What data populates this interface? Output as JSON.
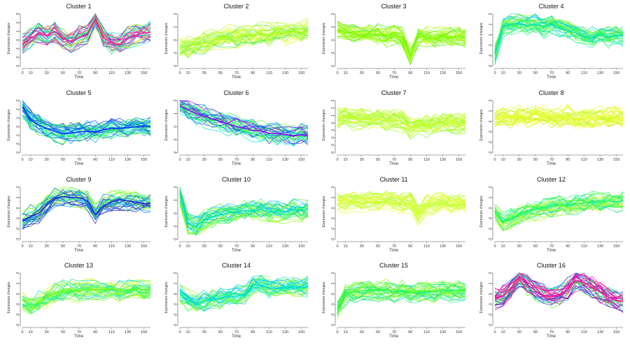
{
  "figure": {
    "xlabel": "Time",
    "ylabel": "Expression changes",
    "x_ticks": [
      0,
      10,
      30,
      50,
      70,
      90,
      110,
      130,
      150
    ]
  },
  "chart_data": [
    {
      "type": "line",
      "title": "Cluster 1",
      "xlabel": "Time",
      "ylabel": "Expression changes",
      "ylim": [
        -3,
        3
      ],
      "y_ticks": [
        -3,
        -2,
        -1,
        0,
        1,
        2,
        3
      ],
      "x": [
        0,
        10,
        20,
        30,
        40,
        50,
        60,
        70,
        80,
        90,
        100,
        110,
        120,
        130,
        140,
        150,
        158
      ],
      "series": [
        {
          "values": [
            -0.5,
            0.2,
            0.8,
            0.5,
            1.0,
            0.2,
            -0.2,
            0.3,
            0.6,
            2.4,
            0.3,
            -0.3,
            -0.5,
            0.3,
            0.6,
            0.8,
            0.9
          ]
        }
      ],
      "colors": [
        "#ff1493",
        "#ff00aa",
        "#2a1fd6",
        "#00b0ff",
        "#00e0d0",
        "#40ff40",
        "#b0ff20"
      ]
    },
    {
      "type": "line",
      "title": "Cluster 2",
      "xlabel": "Time",
      "ylabel": "Expression changes",
      "ylim": [
        -2,
        2
      ],
      "y_ticks": [
        -2,
        -1,
        0,
        1,
        2
      ],
      "x": [
        0,
        10,
        20,
        30,
        40,
        50,
        60,
        70,
        80,
        90,
        100,
        110,
        120,
        130,
        140,
        150,
        158
      ],
      "series": [
        {
          "values": [
            -0.6,
            -0.5,
            -0.3,
            -0.2,
            0.0,
            0.2,
            0.3,
            0.2,
            0.4,
            0.3,
            0.5,
            0.4,
            0.6,
            0.5,
            0.7,
            0.6,
            0.8
          ]
        }
      ],
      "colors": [
        "#a8ff20",
        "#d8ff30",
        "#80ff30",
        "#f0ff40",
        "#40f040"
      ]
    },
    {
      "type": "line",
      "title": "Cluster 3",
      "xlabel": "Time",
      "ylabel": "Expression changes",
      "ylim": [
        -2,
        2
      ],
      "y_ticks": [
        -2,
        -1,
        0,
        1,
        2
      ],
      "x": [
        0,
        10,
        20,
        30,
        40,
        50,
        60,
        70,
        80,
        90,
        100,
        110,
        120,
        130,
        140,
        150,
        158
      ],
      "series": [
        {
          "values": [
            0.8,
            0.6,
            0.5,
            0.4,
            0.5,
            0.4,
            0.3,
            0.4,
            0.2,
            -1.2,
            0.3,
            0.2,
            0.1,
            0.3,
            0.2,
            0.3,
            0.2
          ]
        }
      ],
      "colors": [
        "#7cff00",
        "#a8ff20",
        "#50f000",
        "#c8ff30"
      ]
    },
    {
      "type": "line",
      "title": "Cluster 4",
      "xlabel": "Time",
      "ylabel": "Expression changes",
      "ylim": [
        -3,
        2
      ],
      "y_ticks": [
        -3,
        -2,
        -1,
        0,
        1,
        2
      ],
      "x": [
        0,
        10,
        20,
        30,
        40,
        50,
        60,
        70,
        80,
        90,
        100,
        110,
        120,
        130,
        140,
        150,
        158
      ],
      "series": [
        {
          "values": [
            -1.8,
            0.8,
            1.0,
            1.1,
            0.9,
            1.0,
            0.8,
            1.0,
            0.7,
            0.4,
            0.2,
            -0.2,
            -0.3,
            0.0,
            -0.2,
            0.0,
            -0.1
          ]
        }
      ],
      "colors": [
        "#00e0c0",
        "#20ff80",
        "#40ff20",
        "#80ff20",
        "#00c8e0"
      ]
    },
    {
      "type": "line",
      "title": "Cluster 5",
      "xlabel": "Time",
      "ylabel": "Expression changes",
      "ylim": [
        -3,
        3
      ],
      "y_ticks": [
        -3,
        -2,
        -1,
        0,
        1,
        2,
        3
      ],
      "x": [
        0,
        10,
        20,
        30,
        40,
        50,
        60,
        70,
        80,
        90,
        100,
        110,
        120,
        130,
        140,
        150,
        158
      ],
      "series": [
        {
          "values": [
            2.3,
            0.8,
            0.2,
            -0.2,
            -0.5,
            -0.8,
            -0.7,
            -0.6,
            -0.5,
            -0.6,
            -0.3,
            -0.2,
            -0.2,
            -0.1,
            0.0,
            0.1,
            0.0
          ]
        }
      ],
      "colors": [
        "#0a2fff",
        "#00a0ff",
        "#00e0e0",
        "#20ff80",
        "#40ff20"
      ]
    },
    {
      "type": "line",
      "title": "Cluster 6",
      "xlabel": "Time",
      "ylabel": "Expression changes",
      "ylim": [
        -2,
        2
      ],
      "y_ticks": [
        -2,
        -1,
        0,
        1,
        2
      ],
      "x": [
        0,
        10,
        20,
        30,
        40,
        50,
        60,
        70,
        80,
        90,
        100,
        110,
        120,
        130,
        140,
        150,
        158
      ],
      "series": [
        {
          "values": [
            1.6,
            1.3,
            1.0,
            0.8,
            0.6,
            0.4,
            0.2,
            0.0,
            -0.1,
            -0.3,
            -0.3,
            -0.5,
            -0.5,
            -0.6,
            -0.7,
            -0.6,
            -0.7
          ]
        }
      ],
      "colors": [
        "#8b00ff",
        "#2020ff",
        "#0080ff",
        "#00e0e0",
        "#20ff60",
        "#60ff20"
      ]
    },
    {
      "type": "line",
      "title": "Cluster 7",
      "xlabel": "Time",
      "ylabel": "Expression changes",
      "ylim": [
        -4,
        3
      ],
      "y_ticks": [
        -4,
        -3,
        -2,
        -1,
        0,
        1,
        2,
        3
      ],
      "x": [
        0,
        10,
        20,
        30,
        40,
        50,
        60,
        70,
        80,
        90,
        100,
        110,
        120,
        130,
        140,
        150,
        158
      ],
      "series": [
        {
          "values": [
            0.6,
            0.7,
            0.5,
            0.6,
            0.4,
            0.5,
            0.3,
            0.4,
            0.2,
            -0.6,
            -0.2,
            -0.4,
            -0.2,
            0.0,
            -0.1,
            -0.2,
            -0.1
          ]
        }
      ],
      "colors": [
        "#c8ff30",
        "#a8ff20",
        "#e8ff40",
        "#80ff30"
      ]
    },
    {
      "type": "line",
      "title": "Cluster 8",
      "xlabel": "Time",
      "ylabel": "Expression changes",
      "ylim": [
        -3,
        2
      ],
      "y_ticks": [
        -3,
        -2,
        -1,
        0,
        1,
        2
      ],
      "x": [
        0,
        10,
        20,
        30,
        40,
        50,
        60,
        70,
        80,
        90,
        100,
        110,
        120,
        130,
        140,
        150,
        158
      ],
      "series": [
        {
          "values": [
            0.3,
            0.5,
            0.4,
            0.6,
            0.5,
            0.7,
            0.6,
            0.5,
            0.4,
            0.6,
            0.2,
            0.4,
            0.3,
            0.5,
            0.4,
            0.5,
            0.4
          ]
        }
      ],
      "colors": [
        "#e8ff30",
        "#f8ff40",
        "#d0ff20",
        "#c0f020"
      ]
    },
    {
      "type": "line",
      "title": "Cluster 9",
      "xlabel": "Time",
      "ylabel": "Expression changes",
      "ylim": [
        -3,
        2
      ],
      "y_ticks": [
        -3,
        -2,
        -1,
        0,
        1,
        2
      ],
      "x": [
        0,
        10,
        20,
        30,
        40,
        50,
        60,
        70,
        80,
        90,
        100,
        110,
        120,
        130,
        140,
        150,
        158
      ],
      "series": [
        {
          "values": [
            -1.2,
            -0.8,
            -0.5,
            0.3,
            0.9,
            1.1,
            1.0,
            1.0,
            0.7,
            -0.6,
            0.2,
            0.6,
            0.8,
            0.7,
            0.6,
            0.4,
            0.5
          ]
        }
      ],
      "colors": [
        "#2a1fd6",
        "#0090ff",
        "#00d0e0",
        "#20ff60",
        "#60ff20",
        "#a0ff20"
      ]
    },
    {
      "type": "line",
      "title": "Cluster 10",
      "xlabel": "Time",
      "ylabel": "Expression changes",
      "ylim": [
        -2,
        2
      ],
      "y_ticks": [
        -2,
        -1,
        0,
        1,
        2
      ],
      "x": [
        0,
        10,
        20,
        30,
        40,
        50,
        60,
        70,
        80,
        90,
        100,
        110,
        120,
        130,
        140,
        150,
        158
      ],
      "series": [
        {
          "values": [
            1.5,
            -0.8,
            -1.0,
            -0.5,
            -0.3,
            -0.1,
            0.0,
            0.1,
            0.2,
            0.2,
            0.3,
            0.1,
            0.2,
            0.1,
            0.3,
            0.2,
            0.3
          ]
        }
      ],
      "colors": [
        "#00e0c0",
        "#20ff70",
        "#50ff20",
        "#00c0f0",
        "#90ff20"
      ]
    },
    {
      "type": "line",
      "title": "Cluster 11",
      "xlabel": "Time",
      "ylabel": "Expression changes",
      "ylim": [
        -3,
        2
      ],
      "y_ticks": [
        -3,
        -2,
        -1,
        0,
        1,
        2
      ],
      "x": [
        0,
        10,
        20,
        30,
        40,
        50,
        60,
        70,
        80,
        90,
        100,
        110,
        120,
        130,
        140,
        150,
        158
      ],
      "series": [
        {
          "values": [
            0.4,
            0.5,
            0.6,
            0.5,
            0.6,
            0.5,
            0.6,
            0.5,
            0.3,
            0.4,
            -0.7,
            0.2,
            0.3,
            0.4,
            0.2,
            0.3,
            0.2
          ]
        }
      ],
      "colors": [
        "#c8ff30",
        "#e0ff40",
        "#a8ff20",
        "#f0ff50"
      ]
    },
    {
      "type": "line",
      "title": "Cluster 12",
      "xlabel": "Time",
      "ylabel": "Expression changes",
      "ylim": [
        -3,
        2
      ],
      "y_ticks": [
        -3,
        -2,
        -1,
        0,
        1,
        2
      ],
      "x": [
        0,
        10,
        20,
        30,
        40,
        50,
        60,
        70,
        80,
        90,
        100,
        110,
        120,
        130,
        140,
        150,
        158
      ],
      "series": [
        {
          "values": [
            -0.3,
            -1.3,
            -1.0,
            -0.6,
            -0.3,
            -0.1,
            0.0,
            0.2,
            0.3,
            0.3,
            0.4,
            0.5,
            0.6,
            0.5,
            0.7,
            0.6,
            0.7
          ]
        }
      ],
      "colors": [
        "#20ff60",
        "#50ff20",
        "#00e0b0",
        "#90ff20",
        "#c0ff30"
      ]
    },
    {
      "type": "line",
      "title": "Cluster 13",
      "xlabel": "Time",
      "ylabel": "Expression changes",
      "ylim": [
        -3,
        2
      ],
      "y_ticks": [
        -3,
        -2,
        -1,
        0,
        1,
        2
      ],
      "x": [
        0,
        10,
        20,
        30,
        40,
        50,
        60,
        70,
        80,
        90,
        100,
        110,
        120,
        130,
        140,
        150,
        158
      ],
      "series": [
        {
          "values": [
            -0.6,
            -1.1,
            -0.8,
            -0.3,
            0.1,
            0.3,
            0.4,
            0.3,
            0.5,
            0.4,
            0.4,
            0.5,
            0.3,
            0.4,
            0.5,
            0.4,
            0.5
          ]
        }
      ],
      "colors": [
        "#60ff20",
        "#a0ff20",
        "#20ff70",
        "#d0ff30",
        "#00e0c0"
      ]
    },
    {
      "type": "line",
      "title": "Cluster 14",
      "xlabel": "Time",
      "ylabel": "Expression changes",
      "ylim": [
        -3,
        2
      ],
      "y_ticks": [
        -3,
        -2,
        -1,
        0,
        1,
        2
      ],
      "x": [
        0,
        10,
        20,
        30,
        40,
        50,
        60,
        70,
        80,
        90,
        100,
        110,
        120,
        130,
        140,
        150,
        158
      ],
      "series": [
        {
          "values": [
            0.0,
            -0.6,
            -0.9,
            -0.7,
            -0.5,
            -0.4,
            -0.3,
            -0.2,
            0.0,
            0.9,
            0.8,
            0.6,
            0.5,
            0.6,
            0.7,
            0.6,
            0.7
          ]
        }
      ],
      "colors": [
        "#00e0d0",
        "#20ff80",
        "#00c0ff",
        "#50ff30",
        "#90ff20"
      ]
    },
    {
      "type": "line",
      "title": "Cluster 15",
      "xlabel": "Time",
      "ylabel": "Expression changes",
      "ylim": [
        -3,
        2
      ],
      "y_ticks": [
        -3,
        -2,
        -1,
        0,
        1,
        2
      ],
      "x": [
        0,
        10,
        20,
        30,
        40,
        50,
        60,
        70,
        80,
        90,
        100,
        110,
        120,
        130,
        140,
        150,
        158
      ],
      "series": [
        {
          "values": [
            -1.5,
            0.0,
            0.2,
            0.3,
            0.4,
            0.3,
            0.4,
            0.2,
            0.3,
            0.1,
            0.2,
            0.3,
            0.2,
            0.4,
            0.3,
            0.4,
            0.3
          ]
        }
      ],
      "colors": [
        "#20ff40",
        "#60ff20",
        "#00e080",
        "#a0ff20",
        "#30f0a0"
      ]
    },
    {
      "type": "line",
      "title": "Cluster 16",
      "xlabel": "Time",
      "ylabel": "Expression changes",
      "ylim": [
        -3,
        2
      ],
      "y_ticks": [
        -3,
        -2,
        -1,
        0,
        1,
        2
      ],
      "x": [
        0,
        10,
        20,
        30,
        40,
        50,
        60,
        70,
        80,
        90,
        100,
        110,
        120,
        130,
        140,
        150,
        158
      ],
      "series": [
        {
          "values": [
            -0.4,
            -0.2,
            0.5,
            1.7,
            0.9,
            0.3,
            -0.1,
            -0.3,
            -0.1,
            0.5,
            1.3,
            1.1,
            0.6,
            0.2,
            -0.3,
            -0.6,
            -0.7
          ]
        }
      ],
      "colors": [
        "#ff1493",
        "#ff00aa",
        "#2020e0",
        "#00a0ff",
        "#00e0d0",
        "#40ff40"
      ]
    }
  ]
}
